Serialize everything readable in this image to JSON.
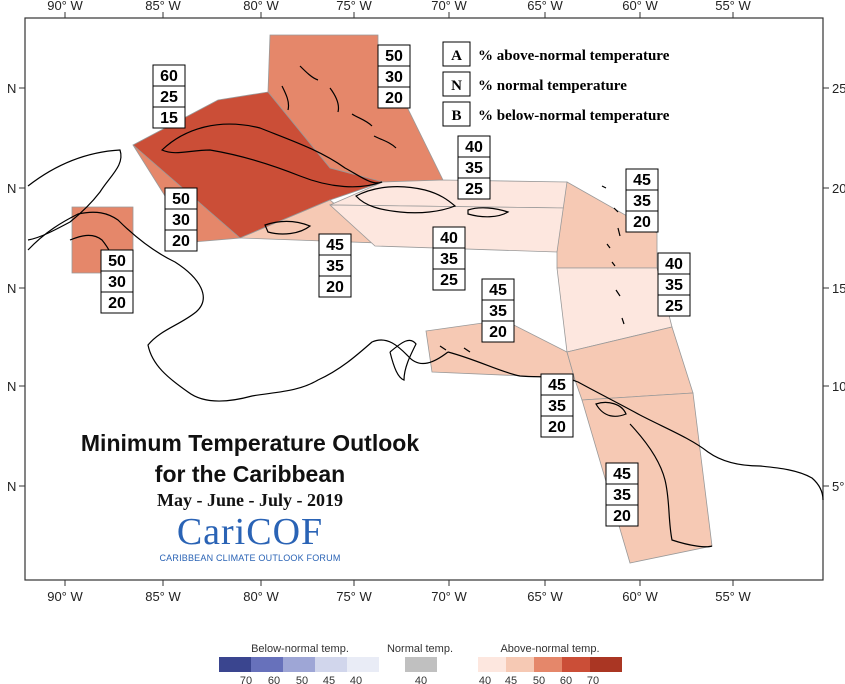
{
  "map": {
    "lon_labels": [
      "90° W",
      "85° W",
      "80° W",
      "75° W",
      "70° W",
      "65° W",
      "60° W",
      "55° W"
    ],
    "lat_labels": [
      "25",
      "20",
      "15",
      "10",
      "5°"
    ],
    "lat_hemisphere": "N",
    "colors": {
      "above_40": "#fde7df",
      "above_45": "#f6c9b4",
      "above_50": "#e5876a",
      "above_60": "#cb4e37",
      "above_70": "#aa3623",
      "normal": "#c0c0c0",
      "below_40": "#e9ecf6",
      "below_45": "#d1d6ec",
      "below_50": "#9ea6d6",
      "below_60": "#6771bb",
      "below_70": "#3a458f"
    },
    "regions": [
      {
        "name": "Bahamas",
        "probs": [
          "50",
          "30",
          "20"
        ]
      },
      {
        "name": "Cuba",
        "probs": [
          "60",
          "25",
          "15"
        ]
      },
      {
        "name": "Cayman Islands",
        "probs": [
          "50",
          "30",
          "20"
        ]
      },
      {
        "name": "Belize",
        "probs": [
          "50",
          "30",
          "20"
        ]
      },
      {
        "name": "Jamaica",
        "probs": [
          "45",
          "35",
          "20"
        ]
      },
      {
        "name": "Turks and Caicos / Northern Hispaniola",
        "probs": [
          "40",
          "35",
          "25"
        ]
      },
      {
        "name": "Hispaniola / Puerto Rico",
        "probs": [
          "40",
          "35",
          "25"
        ]
      },
      {
        "name": "Leeward Islands",
        "probs": [
          "45",
          "35",
          "20"
        ]
      },
      {
        "name": "Windward Islands",
        "probs": [
          "40",
          "35",
          "25"
        ]
      },
      {
        "name": "ABC Islands",
        "probs": [
          "45",
          "35",
          "20"
        ]
      },
      {
        "name": "Trinidad and Tobago",
        "probs": [
          "45",
          "35",
          "20"
        ]
      },
      {
        "name": "Guianas",
        "probs": [
          "45",
          "35",
          "20"
        ]
      }
    ]
  },
  "key": [
    {
      "letter": "A",
      "text": "% above-normal temperature"
    },
    {
      "letter": "N",
      "text": "% normal temperature"
    },
    {
      "letter": "B",
      "text": "% below-normal temperature"
    }
  ],
  "title": {
    "line1": "Minimum Temperature Outlook",
    "line2": "for the Caribbean",
    "period": "May - June - July - 2019"
  },
  "logo": {
    "name": "CariCOF",
    "tagline": "CARIBBEAN CLIMATE OUTLOOK FORUM"
  },
  "colorbar": {
    "below_label": "Below-normal temp.",
    "normal_label": "Normal temp.",
    "above_label": "Above-normal temp.",
    "below_ticks": [
      "70",
      "60",
      "50",
      "45",
      "40"
    ],
    "normal_ticks": [
      "40"
    ],
    "above_ticks": [
      "40",
      "45",
      "50",
      "60",
      "70"
    ]
  }
}
